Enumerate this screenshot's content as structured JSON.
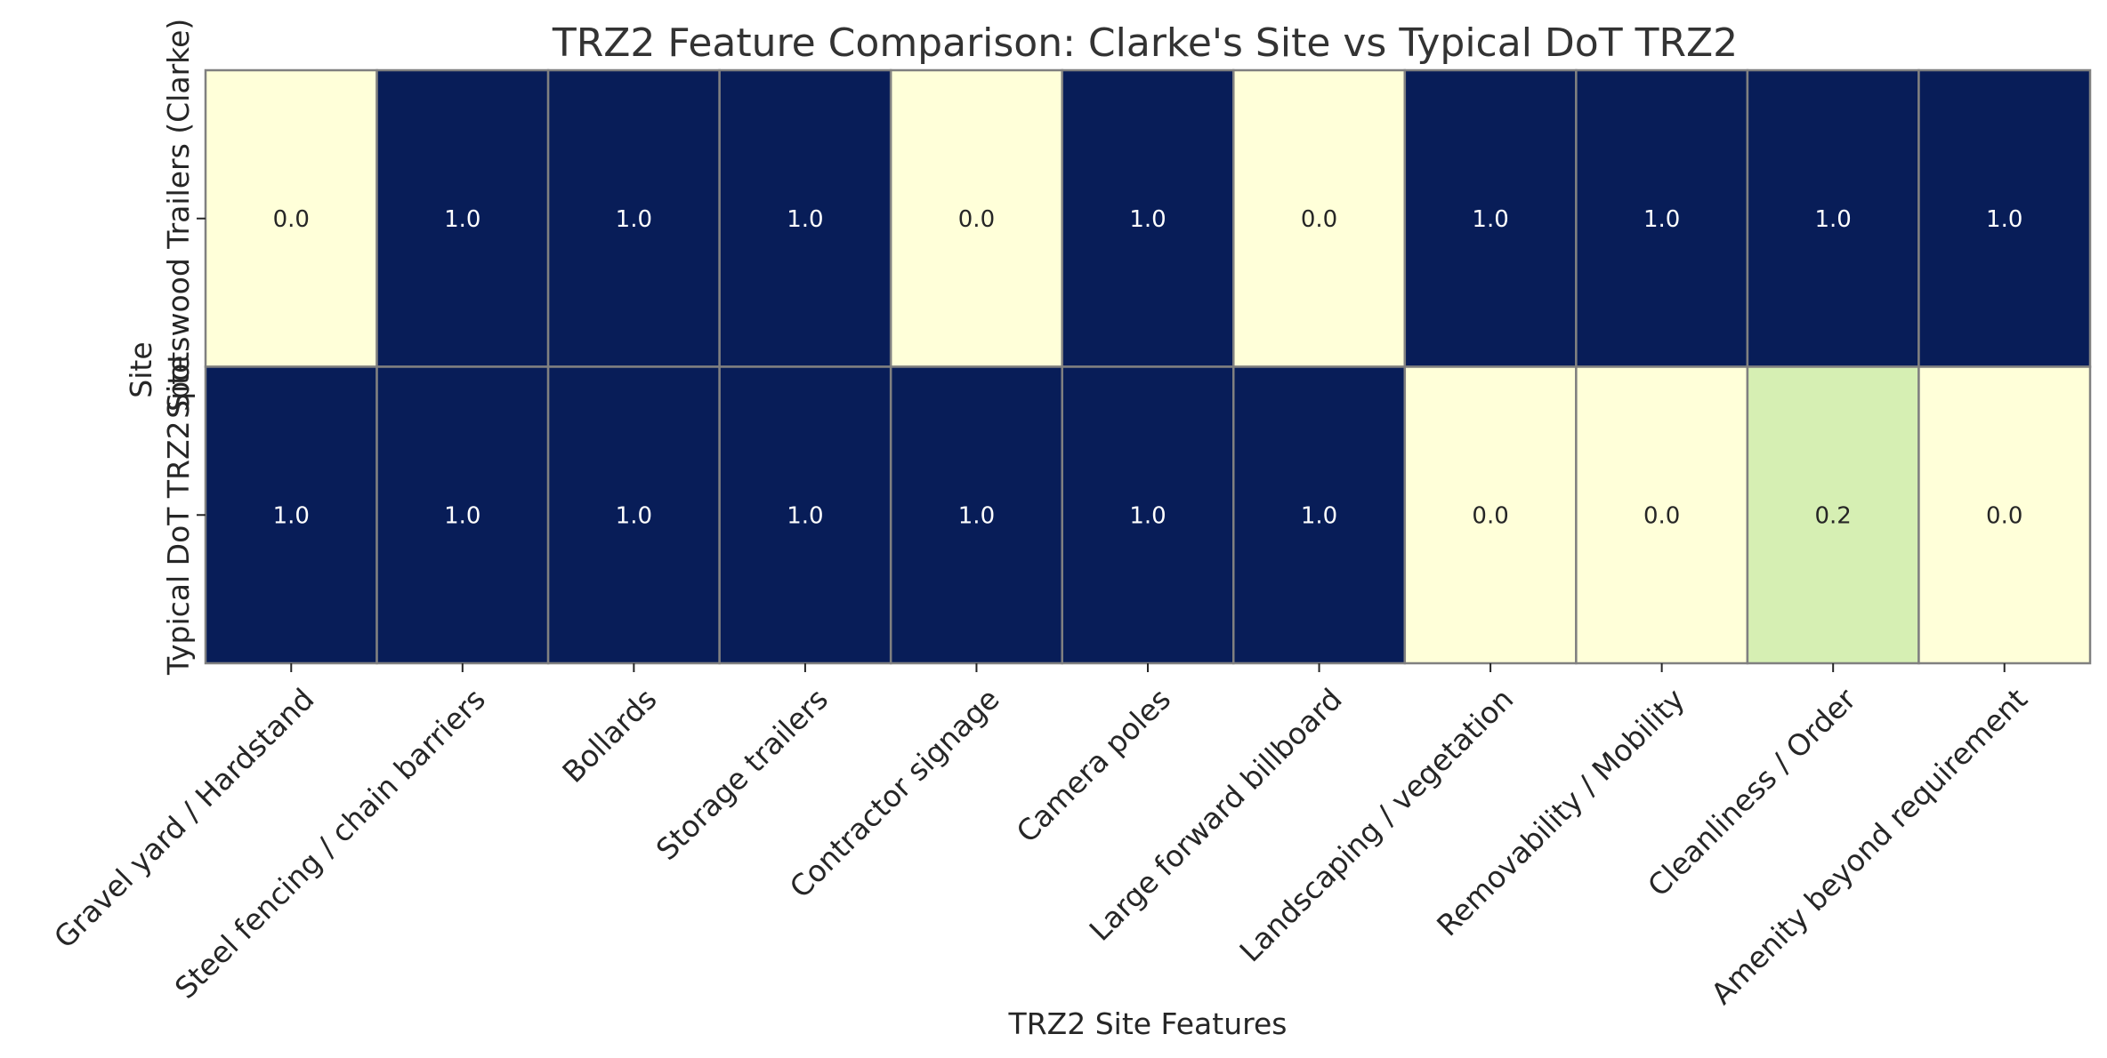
{
  "chart_data": {
    "type": "heatmap",
    "title": "TRZ2 Feature Comparison: Clarke's Site vs Typical DoT TRZ2",
    "xlabel": "TRZ2 Site Features",
    "ylabel": "Site",
    "columns": [
      "Gravel yard / Hardstand",
      "Steel fencing / chain barriers",
      "Bollards",
      "Storage trailers",
      "Contractor signage",
      "Camera poles",
      "Large forward billboard",
      "Landscaping / vegetation",
      "Removability / Mobility",
      "Cleanliness / Order",
      "Amenity beyond requirement"
    ],
    "rows": [
      "Spotswood Trailers (Clarke)",
      "Typical DoT TRZ2 Site"
    ],
    "values": [
      [
        0.0,
        1.0,
        1.0,
        1.0,
        0.0,
        1.0,
        0.0,
        1.0,
        1.0,
        1.0,
        1.0
      ],
      [
        1.0,
        1.0,
        1.0,
        1.0,
        1.0,
        1.0,
        1.0,
        0.0,
        0.0,
        0.2,
        0.0
      ]
    ],
    "value_format": "0.0",
    "colormap": "YlGnBu",
    "vmin": 0,
    "vmax": 1,
    "colorbar": false
  },
  "colors": {
    "low": "#ffffd9",
    "mid": "#d6efb3",
    "high": "#081d58",
    "cell_border": "#808080",
    "text_dark": "#262626",
    "text_light": "#ffffff"
  }
}
